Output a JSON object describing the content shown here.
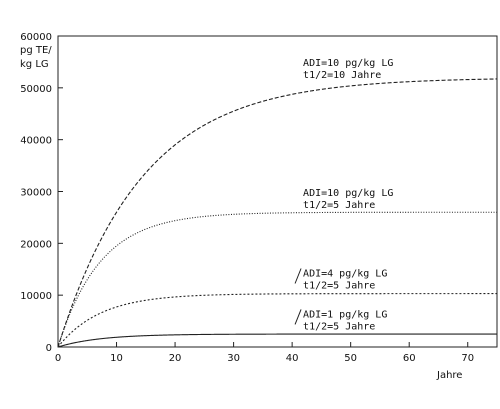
{
  "chart_data": {
    "type": "line",
    "ylabel": [
      "pg TE/",
      "kg LG"
    ],
    "xlabel": "Jahre",
    "xlim": [
      0,
      75
    ],
    "ylim": [
      0,
      60000
    ],
    "xticks": [
      0,
      10,
      20,
      30,
      40,
      50,
      60,
      70
    ],
    "yticks": [
      0,
      10000,
      20000,
      30000,
      40000,
      50000,
      60000
    ],
    "grid": false,
    "series": [
      {
        "lines": [
          "ADI=10 pg/kg LG",
          "t1/2=10 Jahre"
        ],
        "adi": 10,
        "half_life": 10,
        "plateau": 52000,
        "style": "dashed",
        "stroke": "#222222"
      },
      {
        "lines": [
          "ADI=10 pg/kg LG",
          "t1/2=5 Jahre"
        ],
        "adi": 10,
        "half_life": 5,
        "plateau": 26000,
        "style": "dotted",
        "stroke": "#222222"
      },
      {
        "lines": [
          "ADI=4 pg/kg LG",
          "t1/2=5 Jahre"
        ],
        "adi": 4,
        "half_life": 5,
        "plateau": 10300,
        "style": "dashed-fine",
        "stroke": "#222222"
      },
      {
        "lines": [
          "ADI=1 pg/kg LG",
          "t1/2=5 Jahre"
        ],
        "adi": 1,
        "half_life": 5,
        "plateau": 2500,
        "style": "solid",
        "stroke": "#222222"
      }
    ]
  }
}
